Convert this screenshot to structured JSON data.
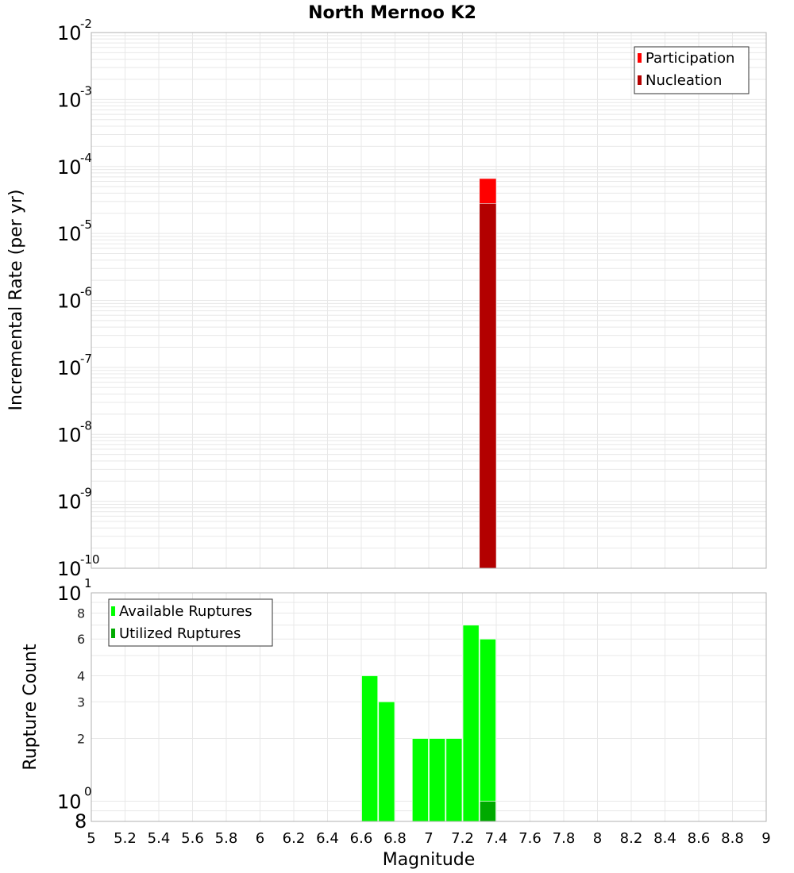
{
  "title": "North Mernoo K2",
  "colors": {
    "participation": "#ff0000",
    "nucleation": "#b30000",
    "available": "#00ff00",
    "utilized": "#00aa00",
    "grid": "#e8e8e8",
    "frame": "#b0b0b0"
  },
  "chart_data": [
    {
      "type": "bar",
      "title": "North Mernoo K2",
      "xlabel": "Magnitude",
      "ylabel": "Incremental Rate (per yr)",
      "yscale": "log",
      "xlim": [
        5,
        9
      ],
      "ylim": [
        1e-10,
        0.01
      ],
      "y_ticks": [
        {
          "base": "10",
          "exp": "-2",
          "value": 0.01
        },
        {
          "base": "10",
          "exp": "-3",
          "value": 0.001
        },
        {
          "base": "10",
          "exp": "-4",
          "value": 0.0001
        },
        {
          "base": "10",
          "exp": "-5",
          "value": 1e-05
        },
        {
          "base": "10",
          "exp": "-6",
          "value": 1e-06
        },
        {
          "base": "10",
          "exp": "-7",
          "value": 1e-07
        },
        {
          "base": "10",
          "exp": "-8",
          "value": 1e-08
        },
        {
          "base": "10",
          "exp": "-9",
          "value": 1e-09
        },
        {
          "base": "10",
          "exp": "-10",
          "value": 1e-10
        }
      ],
      "grid": true,
      "legend_position": "upper right",
      "series": [
        {
          "name": "Participation",
          "color": "#ff0000",
          "x": [
            7.35
          ],
          "values": [
            6.6e-05
          ]
        },
        {
          "name": "Nucleation",
          "color": "#b30000",
          "x": [
            7.35
          ],
          "values": [
            2.8e-05
          ]
        }
      ],
      "bar_width": 0.1
    },
    {
      "type": "bar",
      "xlabel": "Magnitude",
      "ylabel": "Rupture Count",
      "yscale": "log",
      "xlim": [
        5,
        9
      ],
      "ylim": [
        0.8,
        10
      ],
      "y_ticks": [
        {
          "label": "10",
          "exp": "1",
          "value": 10,
          "major": true
        },
        {
          "label": "8",
          "value": 8,
          "major": false
        },
        {
          "label": "6",
          "value": 6,
          "major": false
        },
        {
          "label": "4",
          "value": 4,
          "major": false
        },
        {
          "label": "3",
          "value": 3,
          "major": false
        },
        {
          "label": "2",
          "value": 2,
          "major": false
        },
        {
          "label": "10",
          "exp": "0",
          "value": 1,
          "major": true
        },
        {
          "label": "8",
          "value": 0.8,
          "major": true
        }
      ],
      "x_ticks": [
        "5",
        "5.2",
        "5.4",
        "5.6",
        "5.8",
        "6",
        "6.2",
        "6.4",
        "6.6",
        "6.8",
        "7",
        "7.2",
        "7.4",
        "7.6",
        "7.8",
        "8",
        "8.2",
        "8.4",
        "8.6",
        "8.8",
        "9"
      ],
      "grid": true,
      "legend_position": "upper left",
      "series": [
        {
          "name": "Available Ruptures",
          "color": "#00ff00",
          "x": [
            6.65,
            6.75,
            6.95,
            7.05,
            7.15,
            7.25,
            7.35
          ],
          "values": [
            4,
            3,
            2,
            2,
            2,
            7,
            6
          ]
        },
        {
          "name": "Utilized Ruptures",
          "color": "#00aa00",
          "x": [
            7.35
          ],
          "values": [
            1
          ]
        }
      ],
      "bar_width": 0.1
    }
  ],
  "legend_top": {
    "items": [
      {
        "label": "Participation",
        "color": "#ff0000"
      },
      {
        "label": "Nucleation",
        "color": "#b30000"
      }
    ]
  },
  "legend_bottom": {
    "items": [
      {
        "label": "Available Ruptures",
        "color": "#00ff00"
      },
      {
        "label": "Utilized Ruptures",
        "color": "#00aa00"
      }
    ]
  }
}
